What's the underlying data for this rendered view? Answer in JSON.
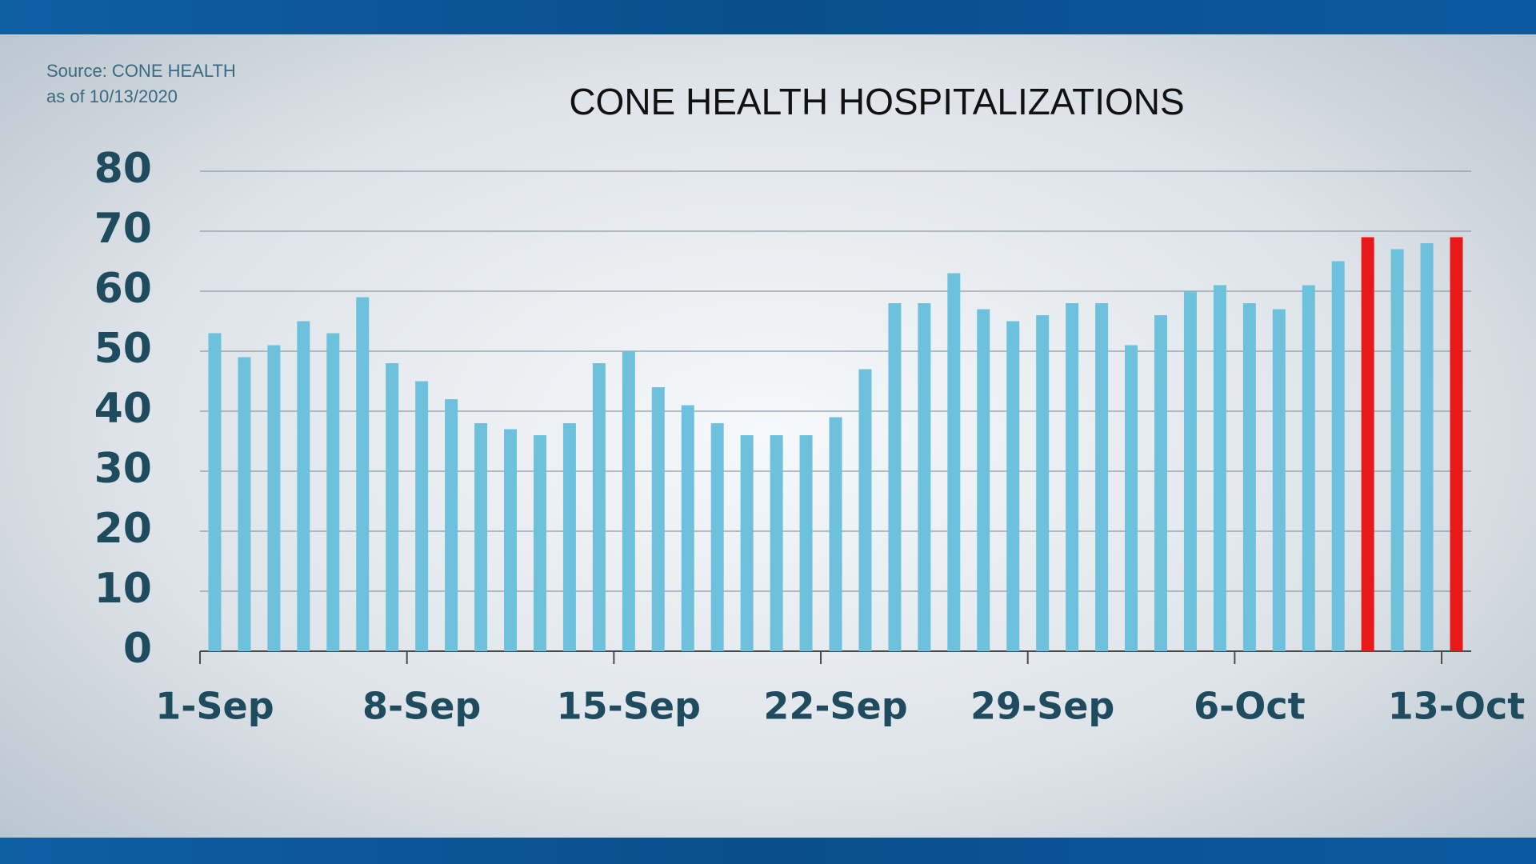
{
  "header": {
    "source": "Source: CONE HEALTH",
    "as_of": "as of 10/13/2020"
  },
  "chart_data": {
    "type": "bar",
    "title": "CONE HEALTH HOSPITALIZATIONS",
    "categories": [
      "1-Sep",
      null,
      null,
      null,
      null,
      null,
      null,
      "8-Sep",
      null,
      null,
      null,
      null,
      null,
      null,
      "15-Sep",
      null,
      null,
      null,
      null,
      null,
      null,
      "22-Sep",
      null,
      null,
      null,
      null,
      null,
      null,
      "29-Sep",
      null,
      null,
      null,
      null,
      null,
      null,
      "6-Oct",
      null,
      null,
      null,
      null,
      null,
      null,
      "13-Oct"
    ],
    "values": [
      53,
      49,
      51,
      55,
      53,
      59,
      48,
      45,
      42,
      38,
      37,
      36,
      38,
      48,
      50,
      44,
      41,
      38,
      36,
      36,
      36,
      39,
      47,
      58,
      58,
      63,
      57,
      55,
      56,
      58,
      58,
      51,
      56,
      60,
      61,
      58,
      57,
      61,
      65,
      69,
      67,
      68,
      69
    ],
    "colors": [
      "#6ec1dc",
      "#6ec1dc",
      "#6ec1dc",
      "#6ec1dc",
      "#6ec1dc",
      "#6ec1dc",
      "#6ec1dc",
      "#6ec1dc",
      "#6ec1dc",
      "#6ec1dc",
      "#6ec1dc",
      "#6ec1dc",
      "#6ec1dc",
      "#6ec1dc",
      "#6ec1dc",
      "#6ec1dc",
      "#6ec1dc",
      "#6ec1dc",
      "#6ec1dc",
      "#6ec1dc",
      "#6ec1dc",
      "#6ec1dc",
      "#6ec1dc",
      "#6ec1dc",
      "#6ec1dc",
      "#6ec1dc",
      "#6ec1dc",
      "#6ec1dc",
      "#6ec1dc",
      "#6ec1dc",
      "#6ec1dc",
      "#6ec1dc",
      "#6ec1dc",
      "#6ec1dc",
      "#6ec1dc",
      "#6ec1dc",
      "#6ec1dc",
      "#6ec1dc",
      "#6ec1dc",
      "#e8191b",
      "#6ec1dc",
      "#6ec1dc",
      "#e8191b"
    ],
    "ylim": [
      0,
      80
    ],
    "yticks": [
      0,
      10,
      20,
      30,
      40,
      50,
      60,
      70,
      80
    ],
    "grid": true
  }
}
